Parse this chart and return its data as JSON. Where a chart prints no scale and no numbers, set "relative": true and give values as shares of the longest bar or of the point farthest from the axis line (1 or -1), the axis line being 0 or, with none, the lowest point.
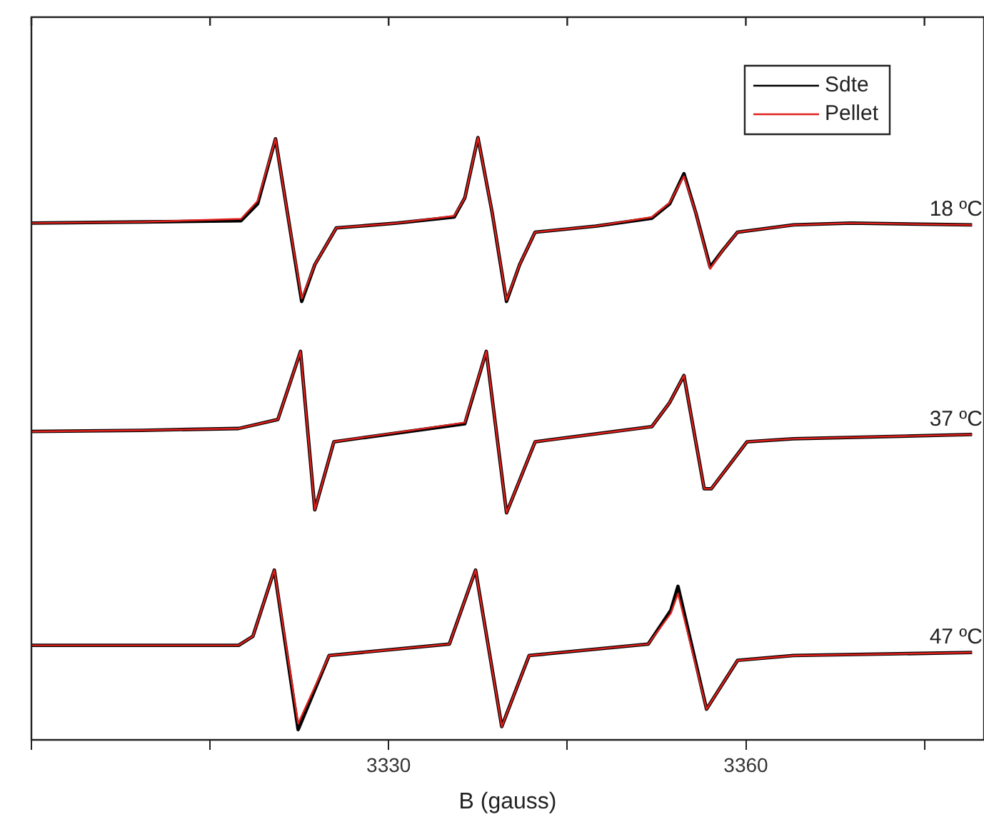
{
  "chart_data": {
    "type": "line",
    "xlabel": "B (gauss)",
    "relative": true,
    "xlim": [
      3300,
      3380
    ],
    "xticks": [
      {
        "value": 3300,
        "label": null
      },
      {
        "value": 3315,
        "label": null
      },
      3330,
      {
        "value": 3345,
        "label": null
      },
      3360,
      {
        "value": 3375,
        "label": null
      }
    ],
    "tick_labels": "x",
    "grid": false,
    "legend": "top right",
    "marker": "none",
    "line_style": "solid",
    "annotations": [
      "18 ºC",
      "37 ºC",
      "47 ºC"
    ],
    "series": [
      {
        "name": "Sdte",
        "color": "#000000",
        "x": [
          3300,
          3309.3,
          3317.6,
          3319,
          3320.5,
          3321.5,
          3322.7,
          3323.8,
          3325.6,
          3330.7,
          3335.5,
          3336.4,
          3337.5,
          3338.7,
          3339.9,
          3341,
          3342.3,
          3347.4,
          3352.1,
          3353.6,
          3354.8,
          3355.8,
          3357,
          3358.1,
          3359.3,
          3364,
          3368.8,
          3379
        ],
        "values": [
          0.858,
          0.86,
          0.862,
          0.89,
          0.998,
          0.875,
          0.728,
          0.789,
          0.85,
          0.858,
          0.868,
          0.9,
          1.0,
          0.875,
          0.728,
          0.789,
          0.843,
          0.853,
          0.866,
          0.89,
          0.94,
          0.875,
          0.785,
          0.814,
          0.843,
          0.855,
          0.858,
          0.855
        ]
      },
      {
        "name": "Pellet",
        "color": "#e0201b",
        "x": [
          3300,
          3309.3,
          3317.6,
          3319,
          3320.5,
          3321.5,
          3322.7,
          3323.8,
          3325.6,
          3330.7,
          3335.5,
          3336.4,
          3337.5,
          3338.7,
          3339.9,
          3341,
          3342.3,
          3347.4,
          3352.1,
          3353.6,
          3354.8,
          3355.8,
          3357,
          3358.1,
          3359.3,
          3364,
          3368.8,
          3379
        ],
        "values": [
          0.858,
          0.86,
          0.865,
          0.895,
          0.998,
          0.875,
          0.733,
          0.789,
          0.85,
          0.858,
          0.87,
          0.9,
          1.0,
          0.875,
          0.73,
          0.789,
          0.843,
          0.853,
          0.868,
          0.892,
          0.936,
          0.875,
          0.782,
          0.814,
          0.843,
          0.855,
          0.858,
          0.855
        ]
      },
      {
        "color": "#000000",
        "x": [
          3300,
          3309.3,
          3317.4,
          3320.7,
          3322.6,
          3323.8,
          3325.4,
          3336.4,
          3338.2,
          3339.9,
          3342.3,
          3352.1,
          3353.6,
          3354.8,
          3356.5,
          3357.1,
          3360.1,
          3364,
          3379
        ],
        "values": [
          0.512,
          0.514,
          0.517,
          0.532,
          0.645,
          0.382,
          0.495,
          0.525,
          0.645,
          0.377,
          0.495,
          0.52,
          0.56,
          0.605,
          0.417,
          0.417,
          0.495,
          0.5,
          0.507
        ]
      },
      {
        "color": "#e0201b",
        "x": [
          3300,
          3309.3,
          3317.4,
          3320.7,
          3322.6,
          3323.8,
          3325.4,
          3336.4,
          3338.2,
          3339.9,
          3342.3,
          3352.1,
          3353.6,
          3354.8,
          3356.5,
          3357.1,
          3360.1,
          3364,
          3379
        ],
        "values": [
          0.512,
          0.514,
          0.517,
          0.532,
          0.645,
          0.382,
          0.495,
          0.527,
          0.645,
          0.377,
          0.495,
          0.52,
          0.56,
          0.605,
          0.417,
          0.417,
          0.495,
          0.5,
          0.507
        ]
      },
      {
        "color": "#000000",
        "x": [
          3300,
          3309.3,
          3317.4,
          3318.6,
          3320.4,
          3322.4,
          3325,
          3335.1,
          3337.3,
          3339.5,
          3341.8,
          3351.8,
          3353.7,
          3354.3,
          3356.7,
          3359.3,
          3364,
          3379
        ],
        "values": [
          0.157,
          0.157,
          0.157,
          0.172,
          0.282,
          0.017,
          0.14,
          0.159,
          0.282,
          0.022,
          0.14,
          0.159,
          0.215,
          0.255,
          0.051,
          0.132,
          0.14,
          0.145
        ]
      },
      {
        "color": "#e0201b",
        "x": [
          3300,
          3309.3,
          3317.4,
          3318.6,
          3320.4,
          3322.4,
          3325,
          3335.1,
          3337.3,
          3339.5,
          3341.8,
          3351.8,
          3353.7,
          3354.3,
          3356.7,
          3359.3,
          3364,
          3379
        ],
        "values": [
          0.157,
          0.157,
          0.157,
          0.172,
          0.282,
          0.027,
          0.14,
          0.159,
          0.282,
          0.022,
          0.14,
          0.159,
          0.21,
          0.243,
          0.051,
          0.132,
          0.14,
          0.145
        ]
      }
    ]
  }
}
